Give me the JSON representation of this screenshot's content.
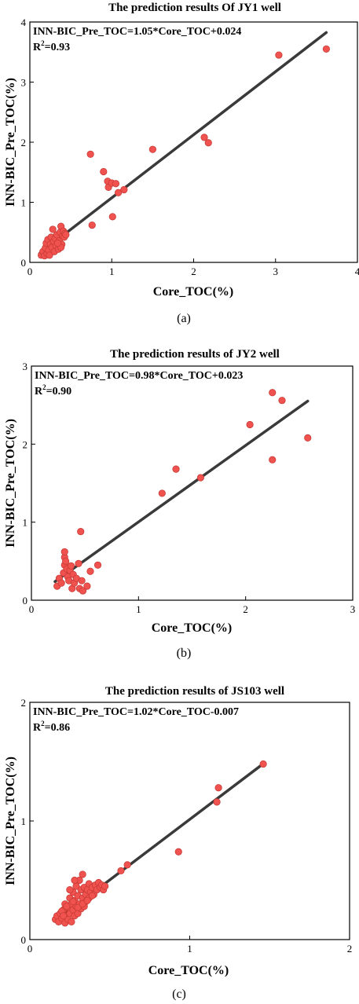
{
  "colors": {
    "point": "#f0534f",
    "point_stroke": "#c93a36",
    "fit_line": "#3a3a3a"
  },
  "chart_data": [
    {
      "type": "scatter",
      "title": "The prediction results Of  JY1 well",
      "equation": "INN-BIC_Pre_TOC=1.05*Core_TOC+0.024",
      "r2_prefix": "R",
      "r2_sup": "2",
      "r2_value": "=0.93",
      "xlabel": "Core_TOC(%)",
      "ylabel": "INN-BIC_Pre_TOC(%)",
      "xlim": [
        0,
        4
      ],
      "ylim": [
        0,
        4
      ],
      "xticks": [
        "0",
        "1",
        "2",
        "3",
        "4"
      ],
      "yticks": [
        "0",
        "1",
        "2",
        "3",
        "4"
      ],
      "caption": "(a)",
      "fit": {
        "slope": 1.05,
        "intercept": 0.024,
        "x_range": [
          0.12,
          3.62
        ]
      },
      "points": [
        [
          0.14,
          0.12
        ],
        [
          0.16,
          0.18
        ],
        [
          0.18,
          0.11
        ],
        [
          0.19,
          0.24
        ],
        [
          0.2,
          0.32
        ],
        [
          0.21,
          0.15
        ],
        [
          0.22,
          0.38
        ],
        [
          0.23,
          0.2
        ],
        [
          0.24,
          0.12
        ],
        [
          0.25,
          0.3
        ],
        [
          0.26,
          0.42
        ],
        [
          0.27,
          0.25
        ],
        [
          0.28,
          0.55
        ],
        [
          0.29,
          0.35
        ],
        [
          0.3,
          0.18
        ],
        [
          0.31,
          0.4
        ],
        [
          0.32,
          0.28
        ],
        [
          0.33,
          0.46
        ],
        [
          0.35,
          0.22
        ],
        [
          0.36,
          0.36
        ],
        [
          0.37,
          0.5
        ],
        [
          0.38,
          0.6
        ],
        [
          0.39,
          0.3
        ],
        [
          0.4,
          0.44
        ],
        [
          0.41,
          0.52
        ],
        [
          0.42,
          0.42
        ],
        [
          0.43,
          0.48
        ],
        [
          0.44,
          0.46
        ],
        [
          0.38,
          0.25
        ],
        [
          0.34,
          0.32
        ],
        [
          0.74,
          1.8
        ],
        [
          0.76,
          0.62
        ],
        [
          0.9,
          1.51
        ],
        [
          0.95,
          1.35
        ],
        [
          0.96,
          1.25
        ],
        [
          1.0,
          1.32
        ],
        [
          1.01,
          0.76
        ],
        [
          1.05,
          1.31
        ],
        [
          1.08,
          1.16
        ],
        [
          1.15,
          1.21
        ],
        [
          1.5,
          1.88
        ],
        [
          2.13,
          2.08
        ],
        [
          2.18,
          1.99
        ],
        [
          3.04,
          3.45
        ],
        [
          3.62,
          3.55
        ]
      ]
    },
    {
      "type": "scatter",
      "title": "The prediction results of JY2 well",
      "equation": "INN-BIC_Pre_TOC=0.98*Core_TOC+0.023",
      "r2_prefix": "R",
      "r2_sup": "2",
      "r2_value": "=0.90",
      "xlabel": "Core_TOC(%)",
      "ylabel": "INN-BIC_Pre_TOC(%)",
      "xlim": [
        0,
        3
      ],
      "ylim": [
        0,
        3
      ],
      "xticks": [
        "0",
        "1",
        "2",
        "3"
      ],
      "yticks": [
        "0",
        "1",
        "2",
        "3"
      ],
      "caption": "(b)",
      "fit": {
        "slope": 0.98,
        "intercept": 0.023,
        "x_range": [
          0.22,
          2.58
        ]
      },
      "points": [
        [
          0.24,
          0.18
        ],
        [
          0.26,
          0.28
        ],
        [
          0.28,
          0.22
        ],
        [
          0.3,
          0.35
        ],
        [
          0.31,
          0.45
        ],
        [
          0.31,
          0.55
        ],
        [
          0.31,
          0.62
        ],
        [
          0.32,
          0.5
        ],
        [
          0.33,
          0.4
        ],
        [
          0.34,
          0.3
        ],
        [
          0.35,
          0.25
        ],
        [
          0.36,
          0.38
        ],
        [
          0.37,
          0.44
        ],
        [
          0.38,
          0.15
        ],
        [
          0.39,
          0.33
        ],
        [
          0.4,
          0.22
        ],
        [
          0.42,
          0.28
        ],
        [
          0.44,
          0.47
        ],
        [
          0.45,
          0.15
        ],
        [
          0.46,
          0.88
        ],
        [
          0.47,
          0.25
        ],
        [
          0.48,
          0.12
        ],
        [
          0.52,
          0.18
        ],
        [
          0.55,
          0.37
        ],
        [
          0.62,
          0.45
        ],
        [
          1.22,
          1.37
        ],
        [
          1.35,
          1.68
        ],
        [
          1.58,
          1.57
        ],
        [
          2.04,
          2.25
        ],
        [
          2.25,
          2.66
        ],
        [
          2.25,
          1.8
        ],
        [
          2.34,
          2.56
        ],
        [
          2.58,
          2.08
        ]
      ]
    },
    {
      "type": "scatter",
      "title": "The prediction results of JS103 well",
      "equation": "INN-BIC_Pre_TOC=1.02*Core_TOC-0.007",
      "r2_prefix": "R",
      "r2_sup": "2",
      "r2_value": "=0.86",
      "xlabel": "Core_TOC(%)",
      "ylabel": "INN-BIC_Pre_TOC(%)",
      "xlim": [
        0,
        2
      ],
      "ylim": [
        0,
        2
      ],
      "xticks": [
        "0",
        "1",
        "2"
      ],
      "yticks": [
        "0",
        "1",
        "2"
      ],
      "caption": "(c)",
      "fit": {
        "slope": 1.02,
        "intercept": -0.007,
        "x_range": [
          0.16,
          1.46
        ]
      },
      "points": [
        [
          0.16,
          0.17
        ],
        [
          0.17,
          0.2
        ],
        [
          0.18,
          0.15
        ],
        [
          0.19,
          0.22
        ],
        [
          0.2,
          0.18
        ],
        [
          0.21,
          0.25
        ],
        [
          0.22,
          0.14
        ],
        [
          0.22,
          0.3
        ],
        [
          0.23,
          0.2
        ],
        [
          0.24,
          0.27
        ],
        [
          0.24,
          0.17
        ],
        [
          0.25,
          0.35
        ],
        [
          0.25,
          0.22
        ],
        [
          0.26,
          0.3
        ],
        [
          0.26,
          0.15
        ],
        [
          0.27,
          0.4
        ],
        [
          0.27,
          0.25
        ],
        [
          0.28,
          0.2
        ],
        [
          0.28,
          0.33
        ],
        [
          0.29,
          0.45
        ],
        [
          0.29,
          0.28
        ],
        [
          0.3,
          0.22
        ],
        [
          0.3,
          0.37
        ],
        [
          0.31,
          0.3
        ],
        [
          0.31,
          0.5
        ],
        [
          0.32,
          0.26
        ],
        [
          0.32,
          0.42
        ],
        [
          0.33,
          0.35
        ],
        [
          0.33,
          0.55
        ],
        [
          0.34,
          0.28
        ],
        [
          0.34,
          0.44
        ],
        [
          0.35,
          0.38
        ],
        [
          0.35,
          0.32
        ],
        [
          0.36,
          0.42
        ],
        [
          0.37,
          0.35
        ],
        [
          0.37,
          0.47
        ],
        [
          0.38,
          0.4
        ],
        [
          0.39,
          0.44
        ],
        [
          0.4,
          0.38
        ],
        [
          0.41,
          0.46
        ],
        [
          0.42,
          0.42
        ],
        [
          0.43,
          0.48
        ],
        [
          0.44,
          0.44
        ],
        [
          0.45,
          0.46
        ],
        [
          0.46,
          0.42
        ],
        [
          0.47,
          0.45
        ],
        [
          0.2,
          0.24
        ],
        [
          0.23,
          0.28
        ],
        [
          0.27,
          0.32
        ],
        [
          0.3,
          0.27
        ],
        [
          0.33,
          0.3
        ],
        [
          0.36,
          0.33
        ],
        [
          0.39,
          0.37
        ],
        [
          0.28,
          0.5
        ],
        [
          0.25,
          0.42
        ],
        [
          0.21,
          0.2
        ],
        [
          0.57,
          0.58
        ],
        [
          0.61,
          0.63
        ],
        [
          0.93,
          0.74
        ],
        [
          1.17,
          1.16
        ],
        [
          1.18,
          1.28
        ],
        [
          1.46,
          1.48
        ]
      ]
    }
  ]
}
